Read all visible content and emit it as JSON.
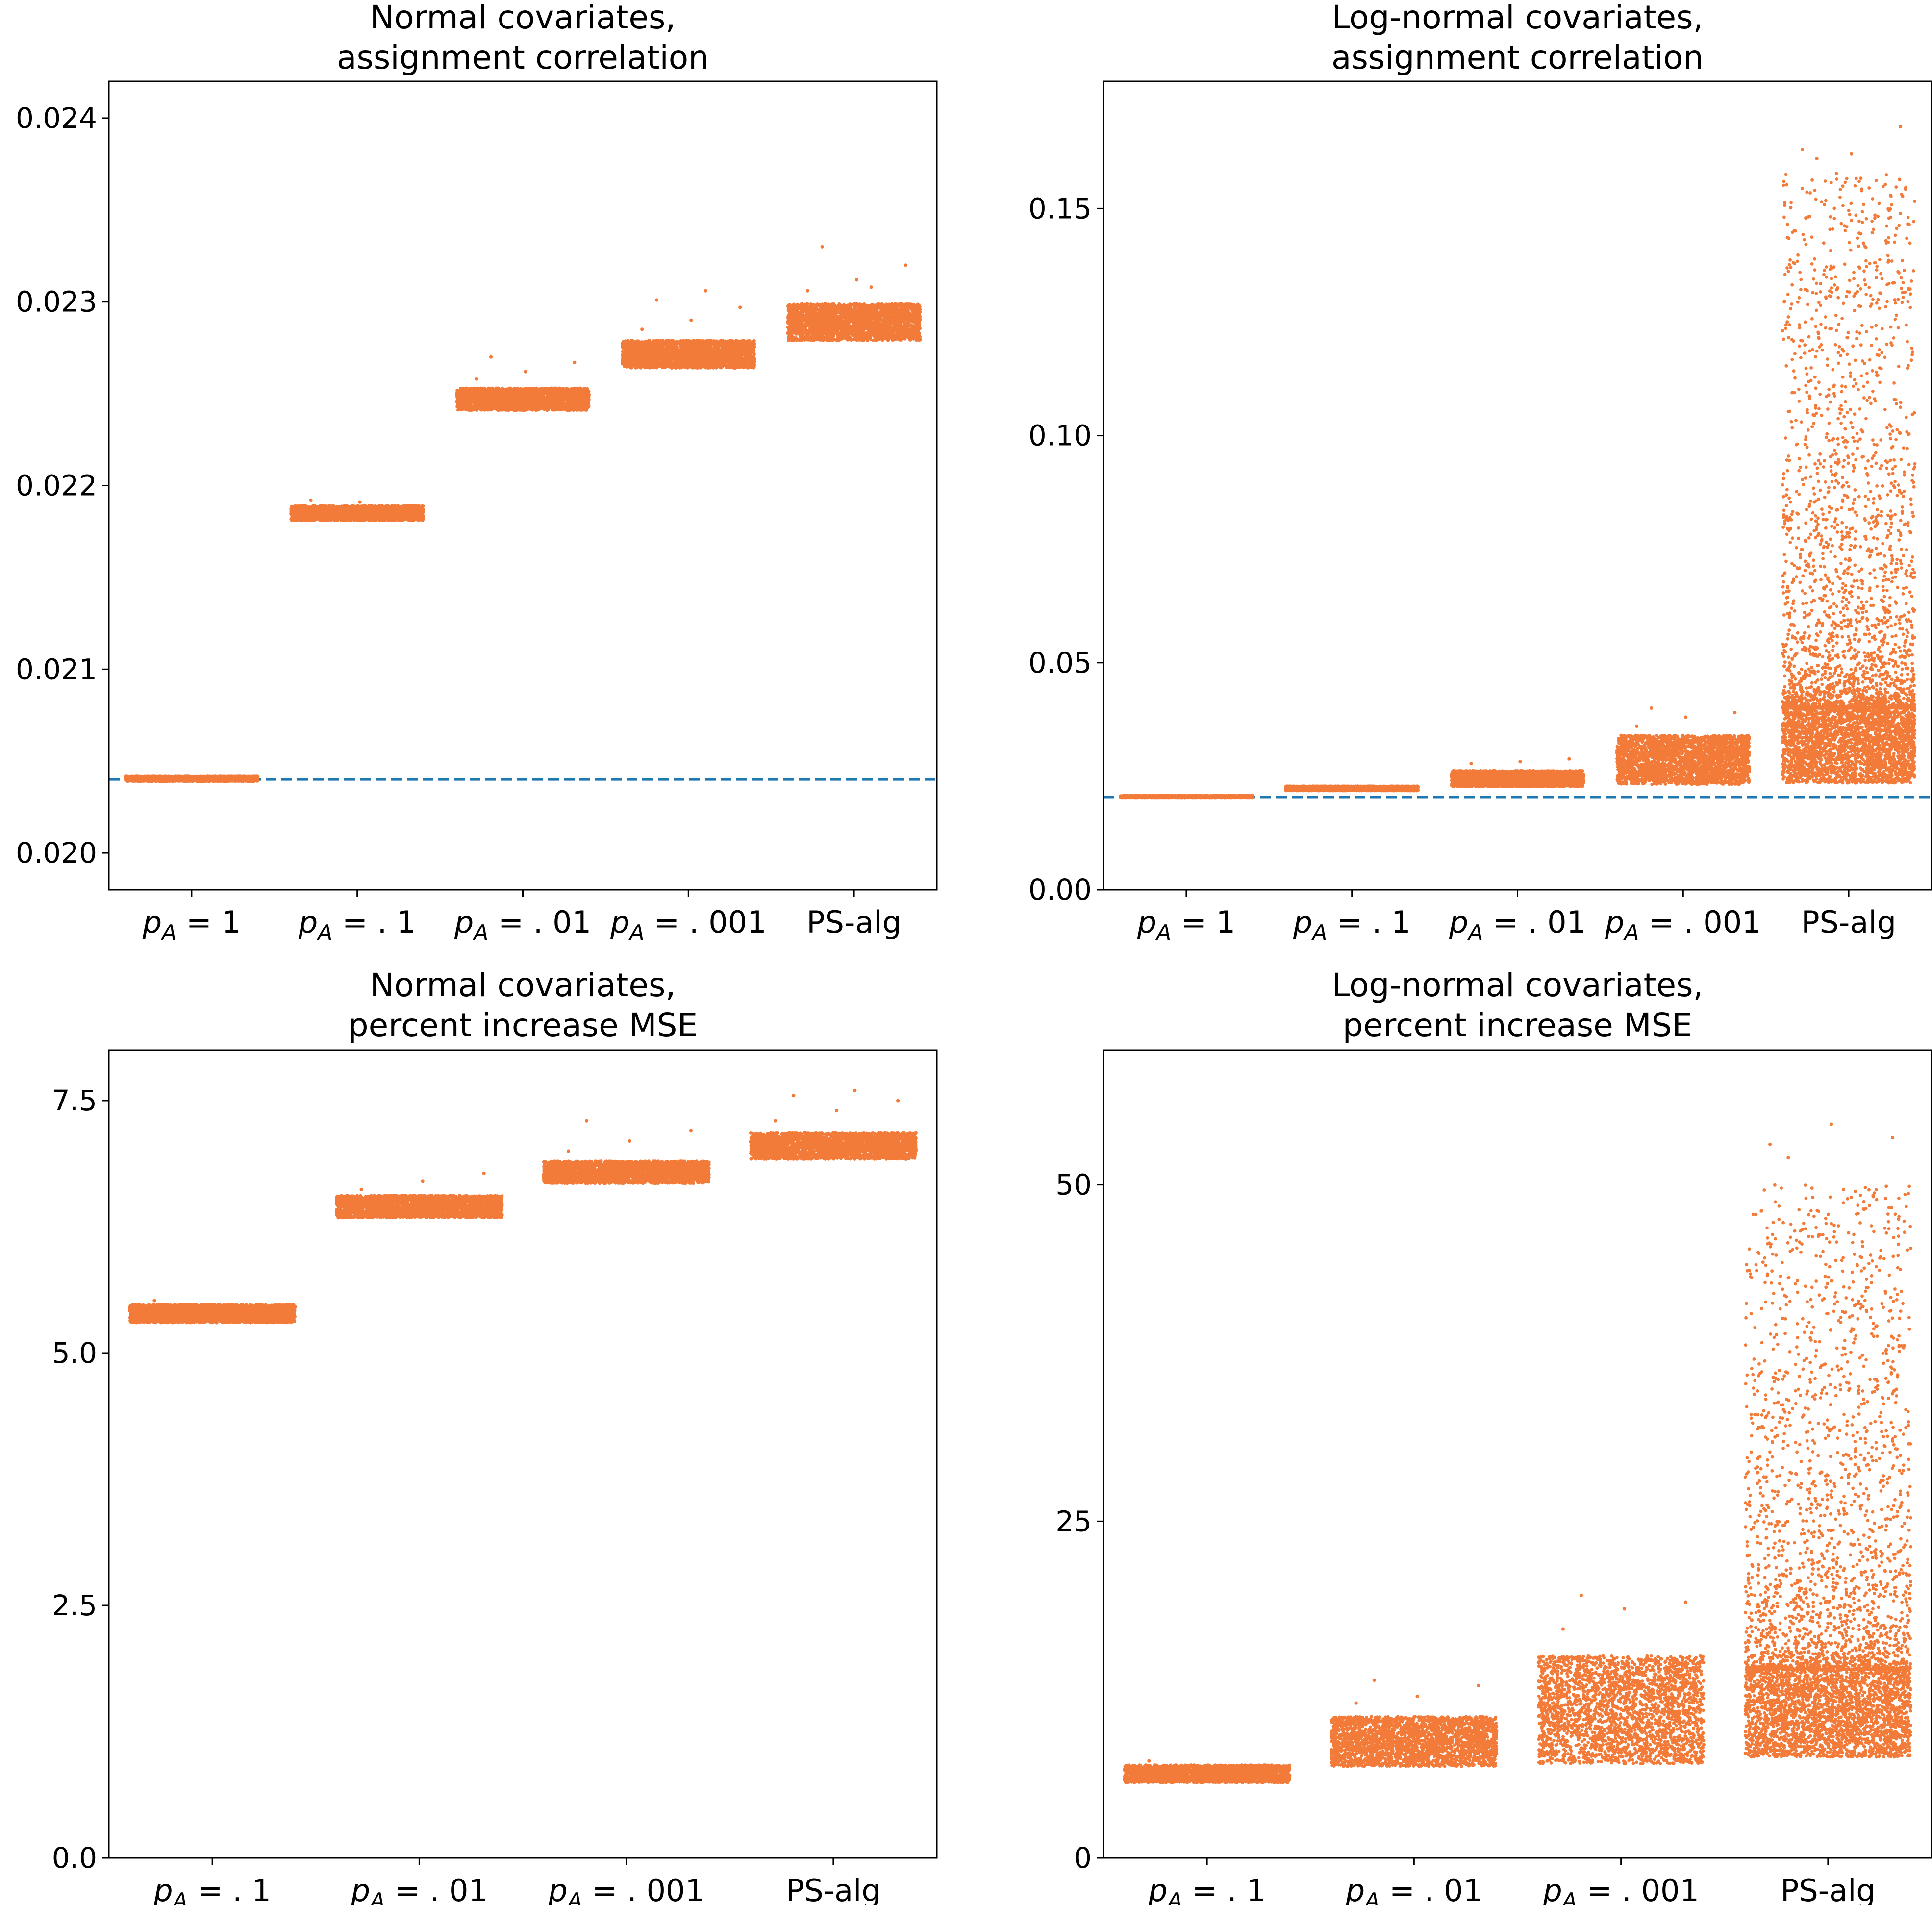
{
  "chart_data": [
    {
      "id": "p1",
      "type": "scatter",
      "title": [
        "Normal covariates,",
        "assignment correlation"
      ],
      "ylim": [
        0.0198,
        0.0242
      ],
      "yticks": [
        0.02,
        0.021,
        0.022,
        0.023,
        0.024
      ],
      "ytick_labels": [
        "0.020",
        "0.021",
        "0.022",
        "0.023",
        "0.024"
      ],
      "categories": [
        {
          "label": "p_A = 1",
          "main": "p",
          "sub": "A",
          "rhs": " = 1"
        },
        {
          "label": "p_A = .1",
          "main": "p",
          "sub": "A",
          "rhs": " = . 1"
        },
        {
          "label": "p_A = .01",
          "main": "p",
          "sub": "A",
          "rhs": " = . 01"
        },
        {
          "label": "p_A = .001",
          "main": "p",
          "sub": "A",
          "rhs": " = . 001"
        },
        {
          "label": "PS-alg",
          "main": "PS-alg",
          "sub": "",
          "rhs": ""
        }
      ],
      "series": [
        {
          "name": "p_A = 1",
          "low": 0.02039,
          "high": 0.02042,
          "outliers": []
        },
        {
          "name": "p_A = .1",
          "low": 0.02181,
          "high": 0.02189,
          "outliers": [
            0.02192,
            0.02191
          ]
        },
        {
          "name": "p_A = .01",
          "low": 0.02241,
          "high": 0.02253,
          "outliers": [
            0.02258,
            0.02262,
            0.02267,
            0.0227
          ]
        },
        {
          "name": "p_A = .001",
          "low": 0.02264,
          "high": 0.02279,
          "outliers": [
            0.02285,
            0.0229,
            0.02297,
            0.02301,
            0.02306
          ]
        },
        {
          "name": "PS-alg",
          "low": 0.02279,
          "high": 0.02299,
          "outliers": [
            0.02306,
            0.02312,
            0.0232,
            0.0233,
            0.02308
          ]
        }
      ],
      "reference_line": 0.0204
    },
    {
      "id": "p2",
      "type": "scatter",
      "title": [
        "Log-normal covariates,",
        "assignment correlation"
      ],
      "ylim": [
        0.0,
        0.178
      ],
      "yticks": [
        0.0,
        0.05,
        0.1,
        0.15
      ],
      "ytick_labels": [
        "0.00",
        "0.05",
        "0.10",
        "0.15"
      ],
      "categories": [
        {
          "label": "p_A = 1",
          "main": "p",
          "sub": "A",
          "rhs": " = 1"
        },
        {
          "label": "p_A = .1",
          "main": "p",
          "sub": "A",
          "rhs": " = . 1"
        },
        {
          "label": "p_A = .01",
          "main": "p",
          "sub": "A",
          "rhs": " = . 01"
        },
        {
          "label": "p_A = .001",
          "main": "p",
          "sub": "A",
          "rhs": " = . 001"
        },
        {
          "label": "PS-alg",
          "main": "PS-alg",
          "sub": "",
          "rhs": ""
        }
      ],
      "series": [
        {
          "name": "p_A = 1",
          "low": 0.0203,
          "high": 0.0207,
          "outliers": []
        },
        {
          "name": "p_A = .1",
          "low": 0.0218,
          "high": 0.0228,
          "outliers": []
        },
        {
          "name": "p_A = .01",
          "low": 0.0227,
          "high": 0.0262,
          "outliers": [
            0.0278,
            0.0282,
            0.0288
          ]
        },
        {
          "name": "p_A = .001",
          "low": 0.0232,
          "high": 0.034,
          "outliers": [
            0.036,
            0.038,
            0.039,
            0.04
          ]
        },
        {
          "name": "PS-alg",
          "low": 0.0235,
          "high": 0.04,
          "tail_high": 0.158,
          "outliers": [
            0.163,
            0.162,
            0.168,
            0.161
          ]
        }
      ],
      "reference_line": 0.0204
    },
    {
      "id": "p3",
      "type": "scatter",
      "title": [
        "Normal covariates,",
        "percent increase MSE"
      ],
      "ylim": [
        0.0,
        8.0
      ],
      "yticks": [
        0.0,
        2.5,
        5.0,
        7.5
      ],
      "ytick_labels": [
        "0.0",
        "2.5",
        "5.0",
        "7.5"
      ],
      "categories": [
        {
          "label": "p_A = .1",
          "main": "p",
          "sub": "A",
          "rhs": " = . 1"
        },
        {
          "label": "p_A = .01",
          "main": "p",
          "sub": "A",
          "rhs": " = . 01"
        },
        {
          "label": "p_A = .001",
          "main": "p",
          "sub": "A",
          "rhs": " = . 001"
        },
        {
          "label": "PS-alg",
          "main": "PS-alg",
          "sub": "",
          "rhs": ""
        }
      ],
      "series": [
        {
          "name": "p_A = .1",
          "low": 5.3,
          "high": 5.48,
          "outliers": [
            5.52
          ]
        },
        {
          "name": "p_A = .01",
          "low": 6.34,
          "high": 6.56,
          "outliers": [
            6.62,
            6.7,
            6.78
          ]
        },
        {
          "name": "p_A = .001",
          "low": 6.68,
          "high": 6.9,
          "outliers": [
            7.0,
            7.1,
            7.2,
            7.3
          ]
        },
        {
          "name": "PS-alg",
          "low": 6.92,
          "high": 7.18,
          "outliers": [
            7.3,
            7.4,
            7.5,
            7.55,
            7.6
          ]
        }
      ],
      "reference_line": null
    },
    {
      "id": "p4",
      "type": "scatter",
      "title": [
        "Log-normal covariates,",
        "percent increase MSE"
      ],
      "ylim": [
        0.0,
        60.0
      ],
      "yticks": [
        0,
        25,
        50
      ],
      "ytick_labels": [
        "0",
        "25",
        "50"
      ],
      "categories": [
        {
          "label": "p_A = .1",
          "main": "p",
          "sub": "A",
          "rhs": " = . 1"
        },
        {
          "label": "p_A = .01",
          "main": "p",
          "sub": "A",
          "rhs": " = . 01"
        },
        {
          "label": "p_A = .001",
          "main": "p",
          "sub": "A",
          "rhs": " = . 001"
        },
        {
          "label": "PS-alg",
          "main": "PS-alg",
          "sub": "",
          "rhs": ""
        }
      ],
      "series": [
        {
          "name": "p_A = .1",
          "low": 5.6,
          "high": 6.9,
          "outliers": [
            7.2
          ]
        },
        {
          "name": "p_A = .01",
          "low": 6.8,
          "high": 10.5,
          "outliers": [
            11.5,
            12.0,
            12.8,
            13.2
          ]
        },
        {
          "name": "p_A = .001",
          "low": 7.0,
          "high": 15.0,
          "outliers": [
            17.0,
            18.5,
            19.0,
            19.5
          ]
        },
        {
          "name": "PS-alg",
          "low": 7.5,
          "high": 14.0,
          "tail_high": 50.0,
          "outliers": [
            53.0,
            54.5,
            53.5,
            52.0
          ]
        }
      ],
      "reference_line": null
    }
  ],
  "colors": {
    "points": "#f37b3a",
    "reference": "#1f77b4"
  }
}
